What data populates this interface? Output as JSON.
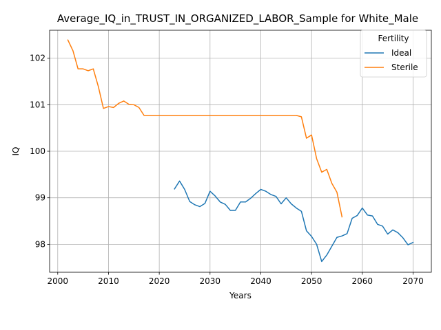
{
  "chart_data": {
    "type": "line",
    "title": "Average_IQ_in_TRUST_IN_ORGANIZED_LABOR_Sample for White_Male",
    "xlabel": "Years",
    "ylabel": "IQ",
    "xlim": [
      1998.4,
      2073.6
    ],
    "ylim": [
      97.4,
      102.6
    ],
    "xticks": [
      2000,
      2010,
      2020,
      2030,
      2040,
      2050,
      2060,
      2070
    ],
    "yticks": [
      98,
      99,
      100,
      101,
      102
    ],
    "grid": true,
    "legend": {
      "title": "Fertility",
      "position": "top-right"
    },
    "series": [
      {
        "name": "Ideal",
        "color": "#1f77b4",
        "points": [
          [
            2023,
            99.19
          ],
          [
            2024,
            99.36
          ],
          [
            2025,
            99.18
          ],
          [
            2026,
            98.92
          ],
          [
            2027,
            98.85
          ],
          [
            2028,
            98.81
          ],
          [
            2029,
            98.88
          ],
          [
            2030,
            99.14
          ],
          [
            2031,
            99.04
          ],
          [
            2032,
            98.91
          ],
          [
            2033,
            98.86
          ],
          [
            2034,
            98.73
          ],
          [
            2035,
            98.73
          ],
          [
            2036,
            98.91
          ],
          [
            2037,
            98.91
          ],
          [
            2038,
            98.99
          ],
          [
            2039,
            99.09
          ],
          [
            2040,
            99.18
          ],
          [
            2041,
            99.14
          ],
          [
            2042,
            99.07
          ],
          [
            2043,
            99.03
          ],
          [
            2044,
            98.87
          ],
          [
            2045,
            99.0
          ],
          [
            2046,
            98.87
          ],
          [
            2047,
            98.78
          ],
          [
            2048,
            98.71
          ],
          [
            2049,
            98.29
          ],
          [
            2050,
            98.17
          ],
          [
            2051,
            98.0
          ],
          [
            2052,
            97.63
          ],
          [
            2053,
            97.77
          ],
          [
            2054,
            97.96
          ],
          [
            2055,
            98.15
          ],
          [
            2056,
            98.18
          ],
          [
            2057,
            98.23
          ],
          [
            2058,
            98.56
          ],
          [
            2059,
            98.62
          ],
          [
            2060,
            98.78
          ],
          [
            2061,
            98.63
          ],
          [
            2062,
            98.61
          ],
          [
            2063,
            98.43
          ],
          [
            2064,
            98.39
          ],
          [
            2065,
            98.22
          ],
          [
            2066,
            98.31
          ],
          [
            2067,
            98.25
          ],
          [
            2068,
            98.14
          ],
          [
            2069,
            97.99
          ],
          [
            2070,
            98.04
          ]
        ]
      },
      {
        "name": "Sterile",
        "color": "#ff7f0e",
        "points": [
          [
            2002,
            102.39
          ],
          [
            2003,
            102.16
          ],
          [
            2004,
            101.77
          ],
          [
            2005,
            101.77
          ],
          [
            2006,
            101.73
          ],
          [
            2007,
            101.77
          ],
          [
            2008,
            101.39
          ],
          [
            2009,
            100.92
          ],
          [
            2010,
            100.96
          ],
          [
            2011,
            100.94
          ],
          [
            2012,
            101.03
          ],
          [
            2013,
            101.08
          ],
          [
            2014,
            101.01
          ],
          [
            2015,
            101.0
          ],
          [
            2016,
            100.94
          ],
          [
            2017,
            100.77
          ],
          [
            2018,
            100.77
          ],
          [
            2019,
            100.77
          ],
          [
            2020,
            100.77
          ],
          [
            2025,
            100.77
          ],
          [
            2030,
            100.77
          ],
          [
            2035,
            100.77
          ],
          [
            2040,
            100.77
          ],
          [
            2045,
            100.77
          ],
          [
            2047,
            100.77
          ],
          [
            2048,
            100.74
          ],
          [
            2049,
            100.28
          ],
          [
            2050,
            100.35
          ],
          [
            2051,
            99.84
          ],
          [
            2052,
            99.55
          ],
          [
            2053,
            99.61
          ],
          [
            2054,
            99.31
          ],
          [
            2055,
            99.12
          ],
          [
            2056,
            98.59
          ]
        ]
      }
    ]
  }
}
